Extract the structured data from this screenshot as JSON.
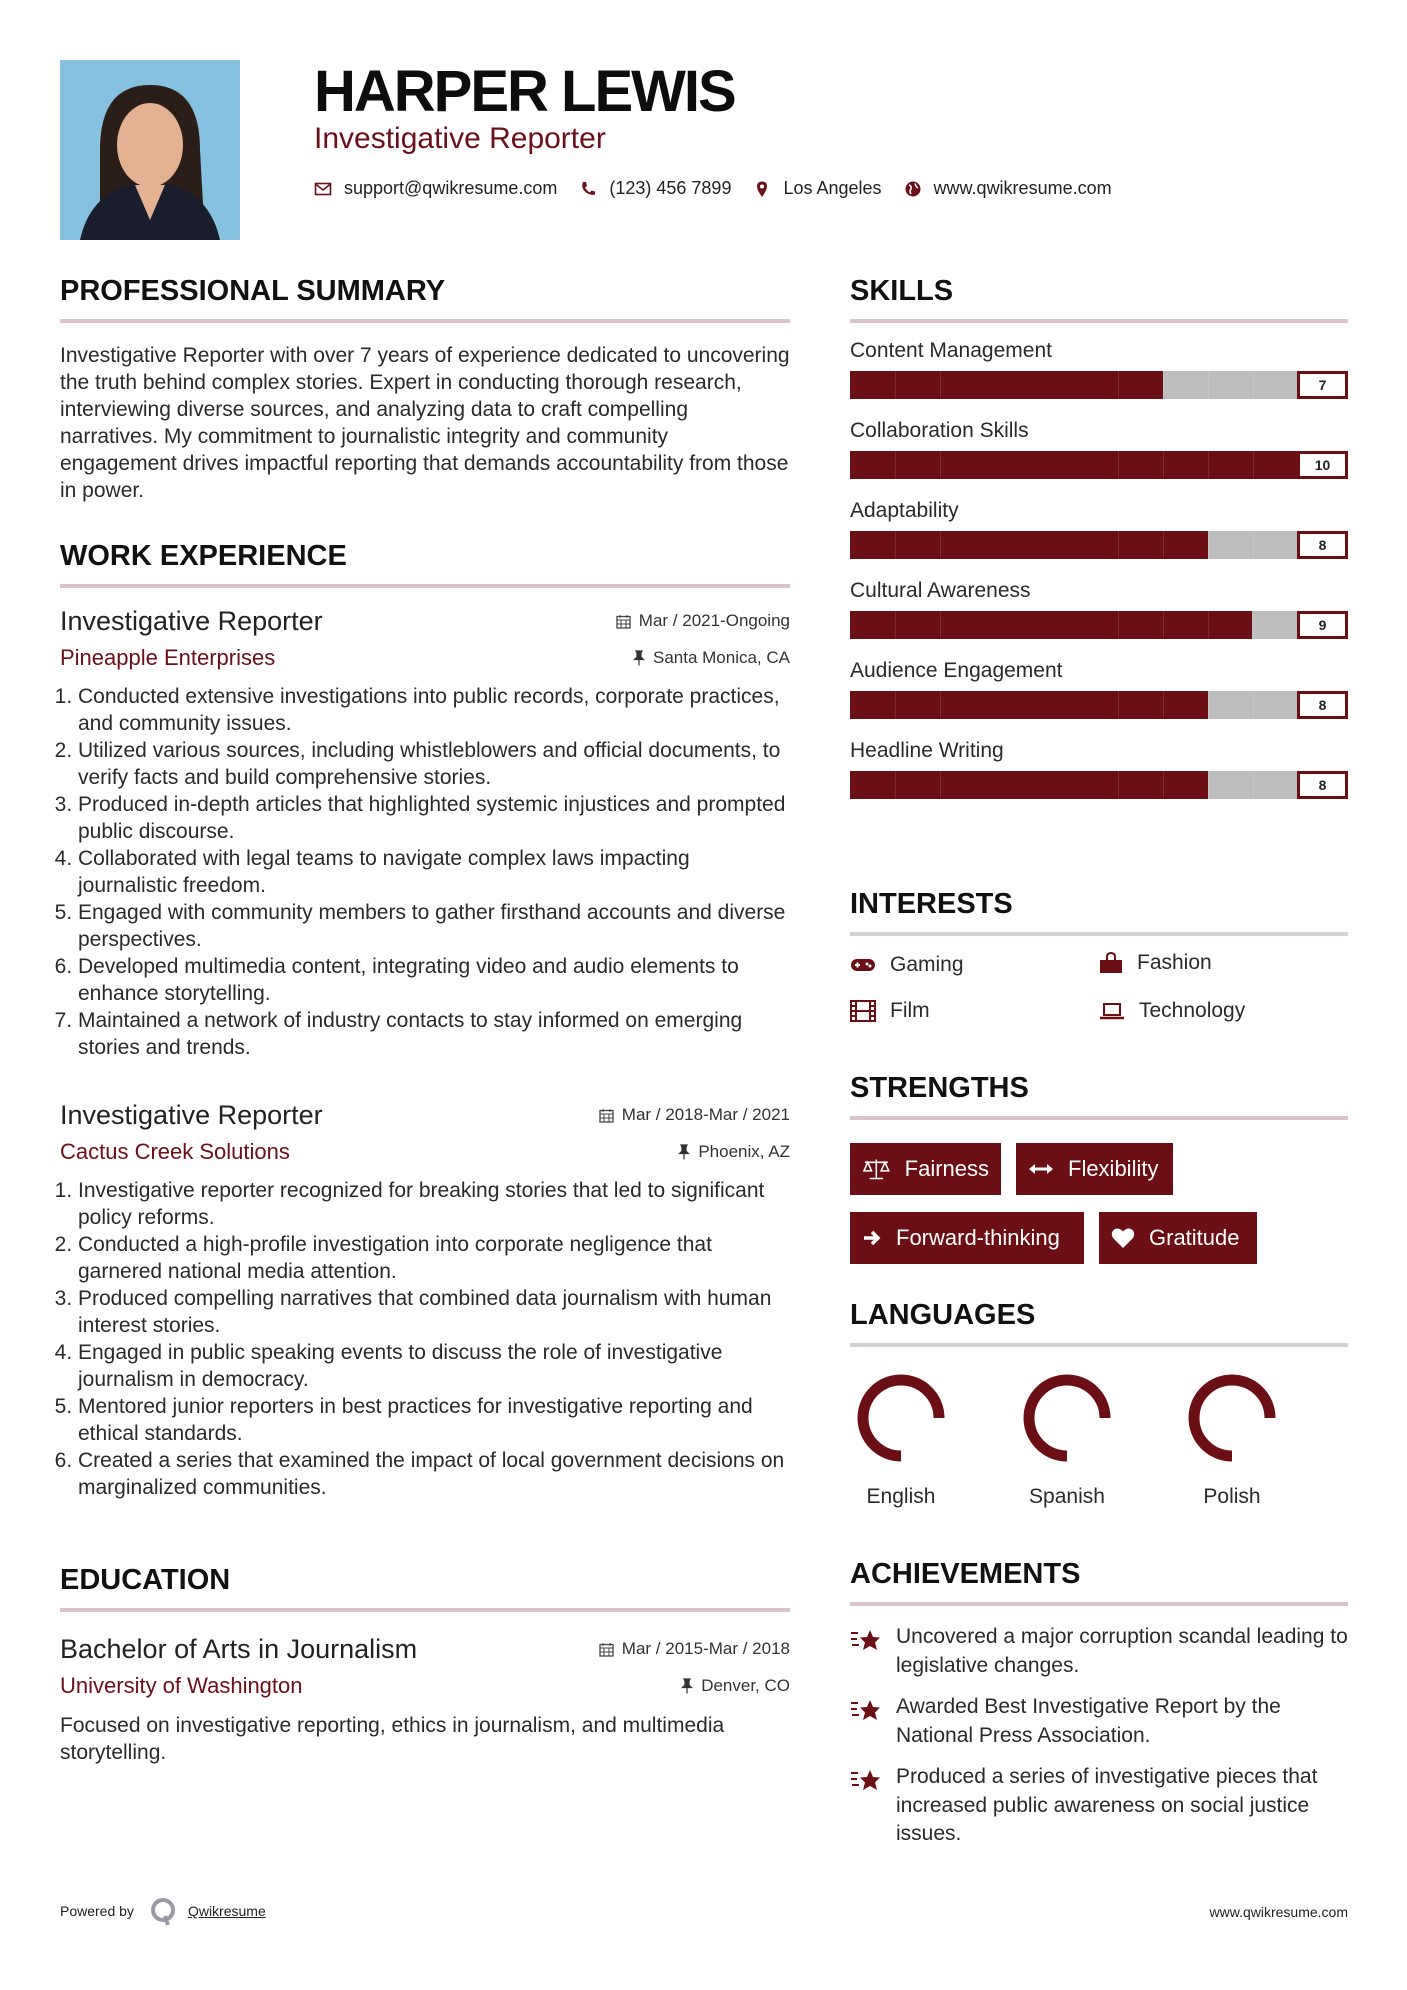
{
  "header": {
    "name": "HARPER LEWIS",
    "title": "Investigative Reporter",
    "email": "support@qwikresume.com",
    "phone": "(123) 456 7899",
    "location": "Los Angeles",
    "website": "www.qwikresume.com"
  },
  "summary": {
    "heading": "PROFESSIONAL SUMMARY",
    "text": "Investigative Reporter with over 7 years of experience dedicated to uncovering the truth behind complex stories. Expert in conducting thorough research, interviewing diverse sources, and analyzing data to craft compelling narratives. My commitment to journalistic integrity and community engagement drives impactful reporting that demands accountability from those in power."
  },
  "experience": {
    "heading": "WORK EXPERIENCE",
    "jobs": [
      {
        "title": "Investigative Reporter",
        "company": "Pineapple Enterprises",
        "dates": "Mar / 2021-Ongoing",
        "location": "Santa Monica, CA",
        "bullets": [
          "Conducted extensive investigations into public records, corporate practices, and community issues.",
          "Utilized various sources, including whistleblowers and official documents, to verify facts and build comprehensive stories.",
          "Produced in-depth articles that highlighted systemic injustices and prompted public discourse.",
          "Collaborated with legal teams to navigate complex laws impacting journalistic freedom.",
          "Engaged with community members to gather firsthand accounts and diverse perspectives.",
          "Developed multimedia content, integrating video and audio elements to enhance storytelling.",
          "Maintained a network of industry contacts to stay informed on emerging stories and trends."
        ]
      },
      {
        "title": "Investigative Reporter",
        "company": "Cactus Creek Solutions",
        "dates": "Mar / 2018-Mar / 2021",
        "location": "Phoenix, AZ",
        "bullets": [
          "Investigative reporter recognized for breaking stories that led to significant policy reforms.",
          "Conducted a high-profile investigation into corporate negligence that garnered national media attention.",
          "Produced compelling narratives that combined data journalism with human interest stories.",
          "Engaged in public speaking events to discuss the role of investigative journalism in democracy.",
          "Mentored junior reporters in best practices for investigative reporting and ethical standards.",
          "Created a series that examined the impact of local government decisions on marginalized communities."
        ]
      }
    ]
  },
  "education": {
    "heading": "EDUCATION",
    "degree": "Bachelor of Arts in Journalism",
    "school": "University of Washington",
    "dates": "Mar / 2015-Mar / 2018",
    "location": "Denver, CO",
    "description": "Focused on investigative reporting, ethics in journalism, and multimedia storytelling."
  },
  "skills": {
    "heading": "SKILLS",
    "max": 10,
    "items": [
      {
        "label": "Content Management",
        "value": "7"
      },
      {
        "label": "Collaboration Skills",
        "value": "10"
      },
      {
        "label": "Adaptability",
        "value": "8"
      },
      {
        "label": "Cultural Awareness",
        "value": "9"
      },
      {
        "label": "Audience Engagement",
        "value": "8"
      },
      {
        "label": "Headline Writing",
        "value": "8"
      }
    ]
  },
  "interests": {
    "heading": "INTERESTS",
    "items": [
      {
        "label": "Gaming",
        "icon": "gamepad-icon"
      },
      {
        "label": "Fashion",
        "icon": "shopping-bag-icon"
      },
      {
        "label": "Film",
        "icon": "film-icon"
      },
      {
        "label": "Technology",
        "icon": "laptop-icon"
      }
    ]
  },
  "strengths": {
    "heading": "STRENGTHS",
    "items": [
      {
        "label": "Fairness",
        "icon": "balance-scale-icon"
      },
      {
        "label": "Flexibility",
        "icon": "arrows-horizontal-icon"
      },
      {
        "label": "Forward-thinking",
        "icon": "arrow-right-icon"
      },
      {
        "label": "Gratitude",
        "icon": "heart-icon"
      }
    ]
  },
  "languages": {
    "heading": "LANGUAGES",
    "items": [
      {
        "label": "English",
        "level": 0.75
      },
      {
        "label": "Spanish",
        "level": 0.75
      },
      {
        "label": "Polish",
        "level": 0.75
      }
    ]
  },
  "achievements": {
    "heading": "ACHIEVEMENTS",
    "items": [
      "Uncovered a major corruption scandal leading to legislative changes.",
      "Awarded Best Investigative Report by the National Press Association.",
      "Produced a series of investigative pieces that increased public awareness on social justice issues."
    ]
  },
  "footer": {
    "powered_by": "Powered by",
    "brand": "Qwikresume",
    "website": "www.qwikresume.com"
  },
  "colors": {
    "accent": "#6b0f14",
    "rule": "#dcc5ca",
    "track": "#bdbdbd"
  }
}
